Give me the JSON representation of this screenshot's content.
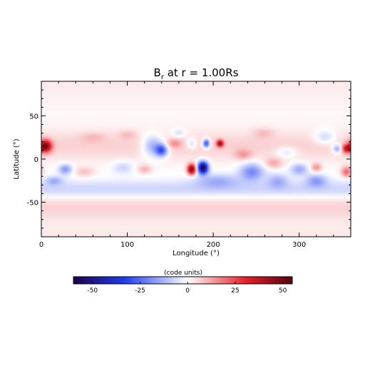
{
  "chart_data": {
    "type": "heatmap",
    "title_main": "B",
    "title_sub": "r",
    "title_rest": " at r = 1.00Rs",
    "xlabel": "Longitude (°)",
    "ylabel": "Latitude (°)",
    "xlim": [
      0,
      360
    ],
    "ylim": [
      -90,
      90
    ],
    "x_ticks": [
      0,
      100,
      200,
      300
    ],
    "y_ticks": [
      -50,
      0,
      50
    ],
    "colorbar": {
      "label": "(code units)",
      "range": [
        -60,
        55
      ],
      "ticks": [
        -50,
        -25,
        0,
        25,
        50
      ],
      "colors": {
        "negative_max": "#1c004e",
        "negative": "#1f3df0",
        "zero": "#ffffff",
        "positive": "#e8202a",
        "positive_max": "#5a0012"
      }
    },
    "background_field": {
      "polar_value": 3,
      "bands": [
        {
          "lat": 15,
          "value": 6,
          "width": 18
        },
        {
          "lat": -35,
          "value": -8,
          "width": 10
        },
        {
          "lat": -55,
          "value": 5,
          "width": 14
        }
      ]
    },
    "features": [
      {
        "lon": 5,
        "lat": 15,
        "value": 45,
        "slon": 7,
        "slat": 7
      },
      {
        "lon": 355,
        "lat": 12,
        "value": 30,
        "slon": 6,
        "slat": 5
      },
      {
        "lon": 28,
        "lat": -12,
        "value": -18,
        "slon": 8,
        "slat": 6
      },
      {
        "lon": 15,
        "lat": -25,
        "value": -12,
        "slon": 10,
        "slat": 5
      },
      {
        "lon": 50,
        "lat": -15,
        "value": 8,
        "slon": 12,
        "slat": 6
      },
      {
        "lon": 95,
        "lat": -10,
        "value": -8,
        "slon": 12,
        "slat": 7
      },
      {
        "lon": 120,
        "lat": -12,
        "value": 10,
        "slon": 8,
        "slat": 5
      },
      {
        "lon": 130,
        "lat": 15,
        "value": -18,
        "slon": 12,
        "slat": 12
      },
      {
        "lon": 140,
        "lat": 10,
        "value": -30,
        "slon": 7,
        "slat": 7
      },
      {
        "lon": 155,
        "lat": 18,
        "value": 10,
        "slon": 8,
        "slat": 5
      },
      {
        "lon": 175,
        "lat": -12,
        "value": 48,
        "slon": 5,
        "slat": 6
      },
      {
        "lon": 188,
        "lat": -10,
        "value": -60,
        "slon": 6,
        "slat": 7
      },
      {
        "lon": 192,
        "lat": 18,
        "value": -35,
        "slon": 4,
        "slat": 5
      },
      {
        "lon": 208,
        "lat": 18,
        "value": 40,
        "slon": 4,
        "slat": 4
      },
      {
        "lon": 175,
        "lat": 18,
        "value": -10,
        "slon": 6,
        "slat": 6
      },
      {
        "lon": 160,
        "lat": 30,
        "value": -8,
        "slon": 8,
        "slat": 5
      },
      {
        "lon": 205,
        "lat": -25,
        "value": -12,
        "slon": 25,
        "slat": 8
      },
      {
        "lon": 245,
        "lat": -15,
        "value": -20,
        "slon": 14,
        "slat": 10
      },
      {
        "lon": 275,
        "lat": -25,
        "value": -12,
        "slon": 12,
        "slat": 8
      },
      {
        "lon": 320,
        "lat": -25,
        "value": -15,
        "slon": 12,
        "slat": 7
      },
      {
        "lon": 300,
        "lat": -12,
        "value": -15,
        "slon": 10,
        "slat": 7
      },
      {
        "lon": 270,
        "lat": -5,
        "value": 10,
        "slon": 10,
        "slat": 6
      },
      {
        "lon": 345,
        "lat": 12,
        "value": -20,
        "slon": 6,
        "slat": 5
      },
      {
        "lon": 330,
        "lat": 25,
        "value": -10,
        "slon": 12,
        "slat": 8
      },
      {
        "lon": 235,
        "lat": 5,
        "value": 10,
        "slon": 10,
        "slat": 6
      },
      {
        "lon": 285,
        "lat": 8,
        "value": -8,
        "slon": 12,
        "slat": 6
      },
      {
        "lon": 355,
        "lat": -15,
        "value": 20,
        "slon": 6,
        "slat": 6
      },
      {
        "lon": 258,
        "lat": 30,
        "value": 6,
        "slon": 12,
        "slat": 6
      },
      {
        "lon": 60,
        "lat": 25,
        "value": 5,
        "slon": 15,
        "slat": 6
      },
      {
        "lon": 320,
        "lat": -10,
        "value": 14,
        "slon": 6,
        "slat": 5
      },
      {
        "lon": 100,
        "lat": 28,
        "value": 6,
        "slon": 10,
        "slat": 5
      }
    ]
  }
}
